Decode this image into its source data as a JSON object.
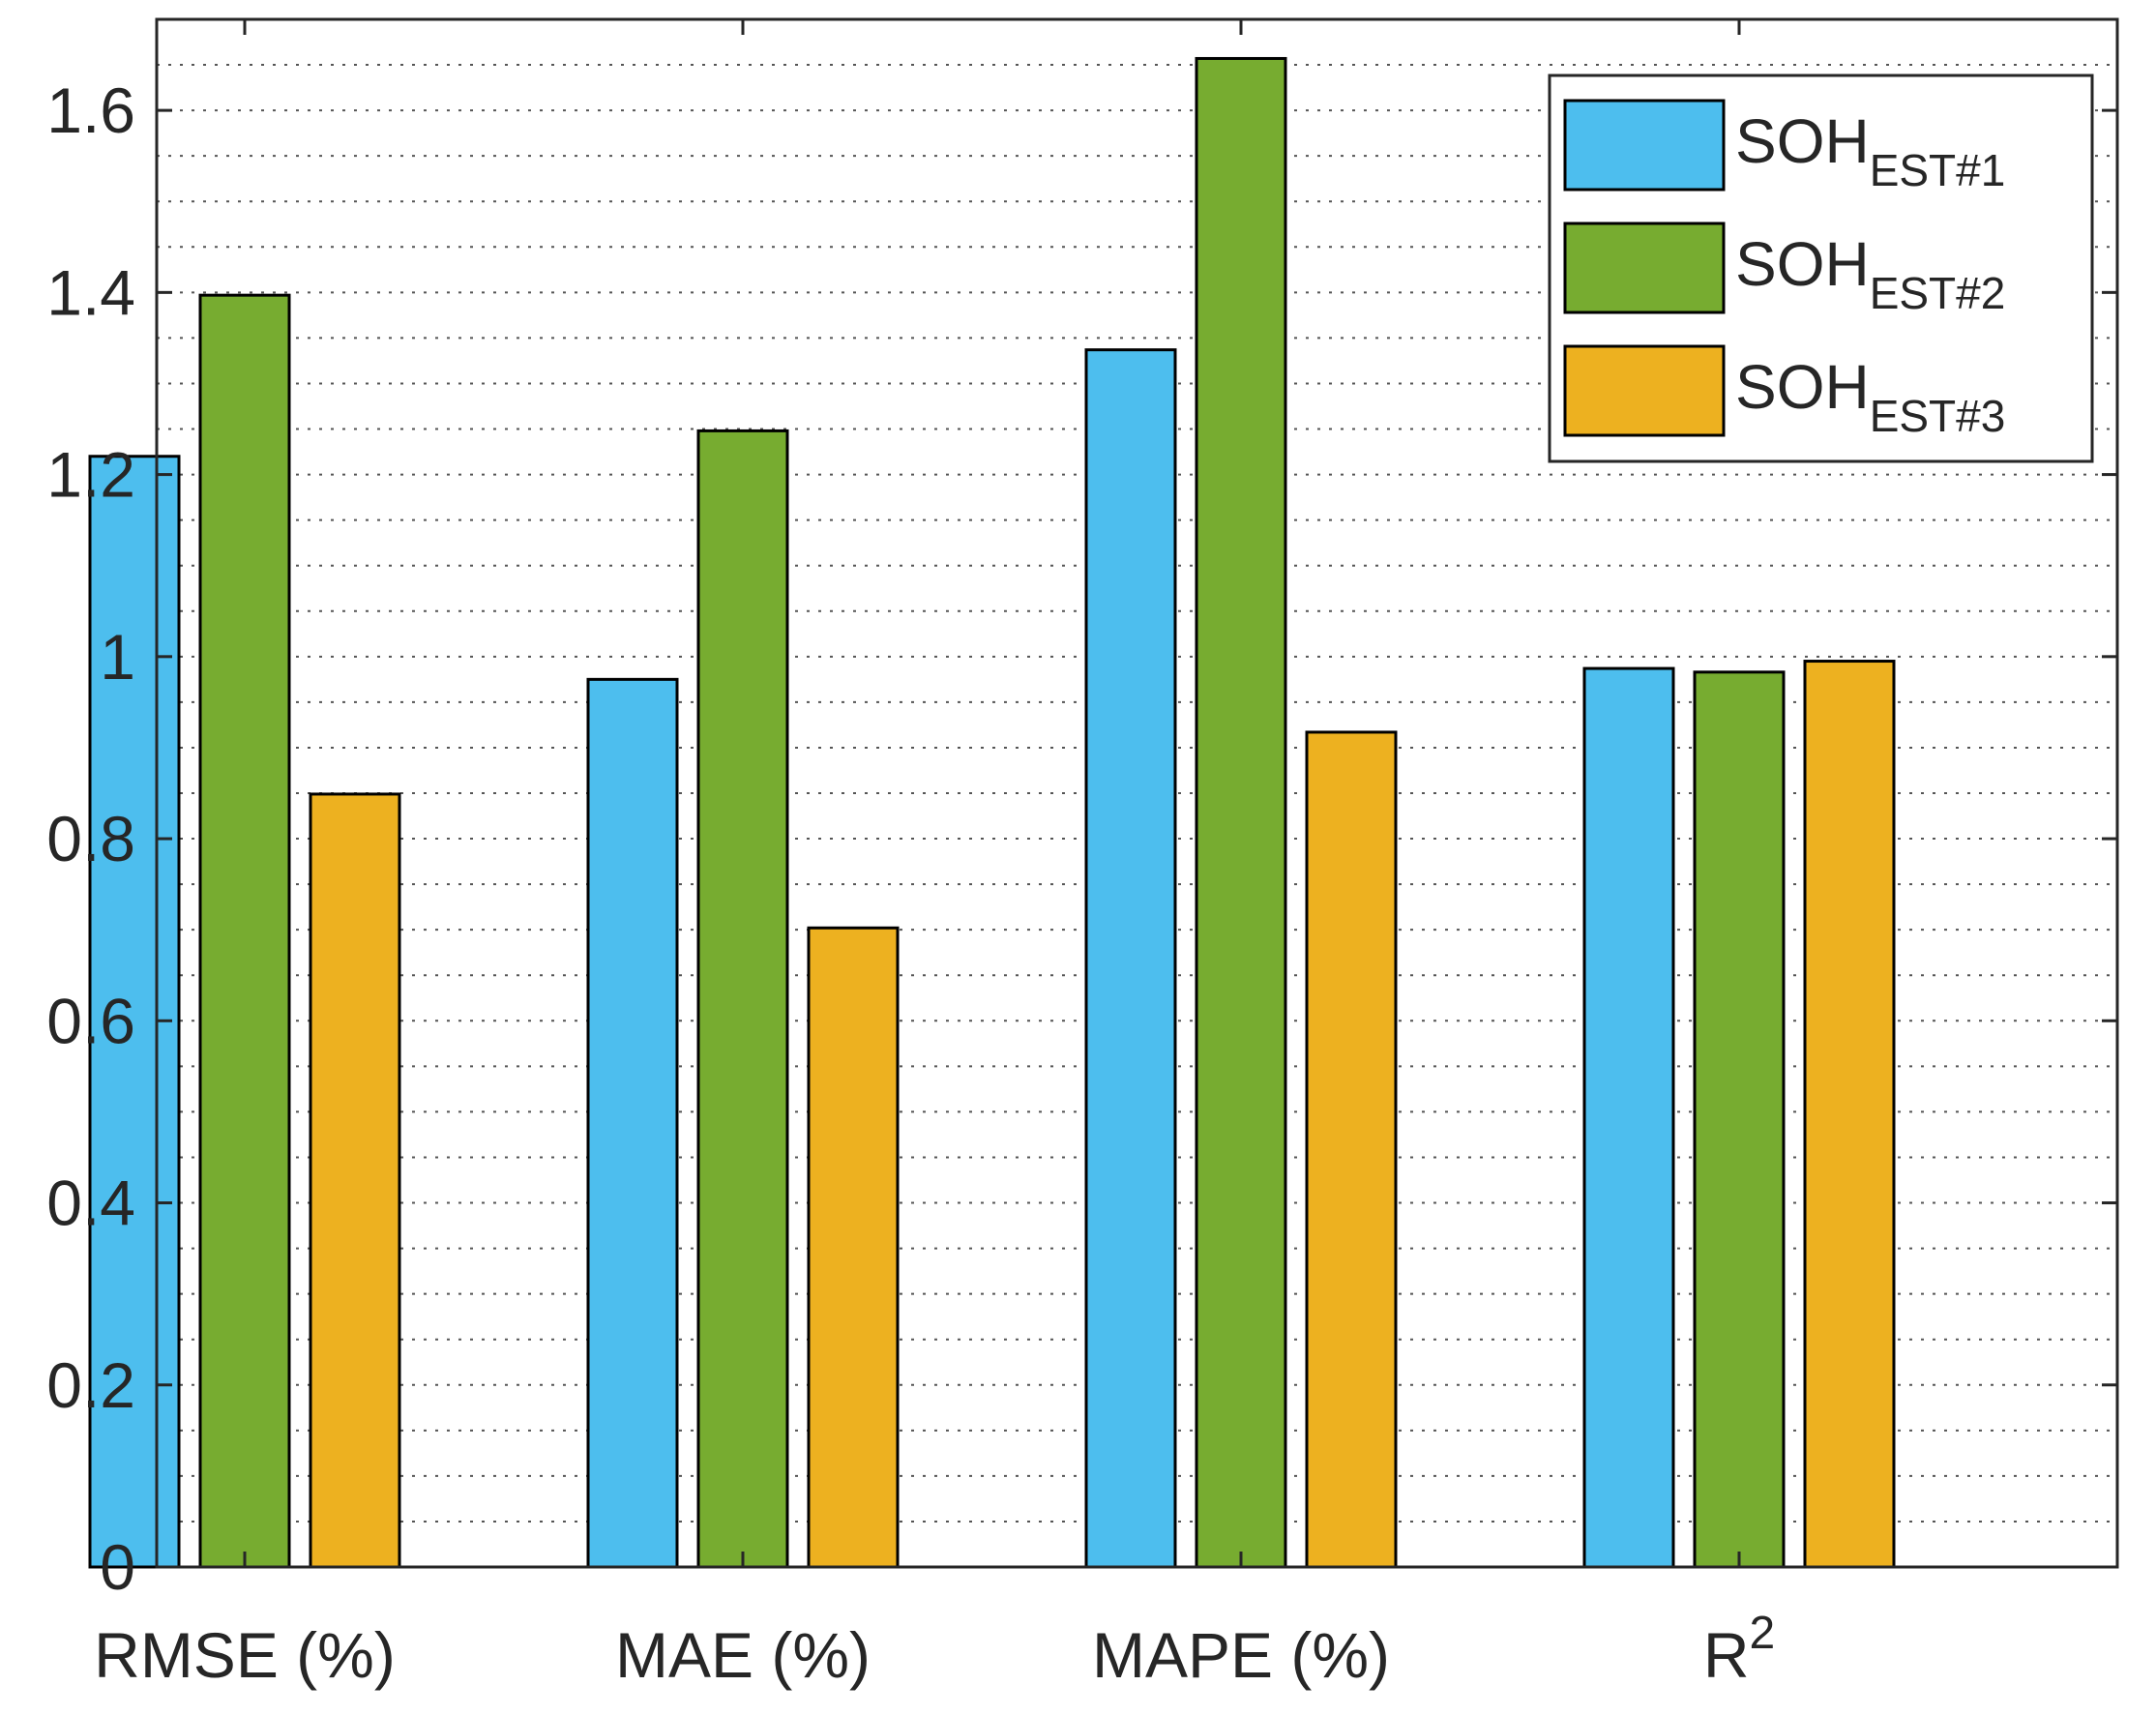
{
  "chart_data": {
    "type": "bar",
    "title": "",
    "xlabel": "",
    "ylabel": "",
    "categories": [
      {
        "main": "RMSE (%)",
        "sup": ""
      },
      {
        "main": "MAE (%)",
        "sup": ""
      },
      {
        "main": "MAPE (%)",
        "sup": ""
      },
      {
        "main": "R",
        "sup": "2"
      }
    ],
    "series": [
      {
        "name": "SOH",
        "sub": "EST#1",
        "color": "#4DBEEE",
        "values": [
          1.22,
          0.975,
          1.337,
          0.987
        ]
      },
      {
        "name": "SOH",
        "sub": "EST#2",
        "color": "#77AC30",
        "values": [
          1.397,
          1.248,
          1.657,
          0.983
        ]
      },
      {
        "name": "SOH",
        "sub": "EST#3",
        "color": "#EDB120",
        "values": [
          0.849,
          0.702,
          0.917,
          0.995
        ]
      }
    ],
    "ylim": [
      0,
      1.7
    ],
    "yticks": [
      "0",
      "0.2",
      "0.4",
      "0.6",
      "0.8",
      "1",
      "1.2",
      "1.4",
      "1.6"
    ],
    "grid": "minor dotted horizontal",
    "legend_position": "top-right"
  }
}
